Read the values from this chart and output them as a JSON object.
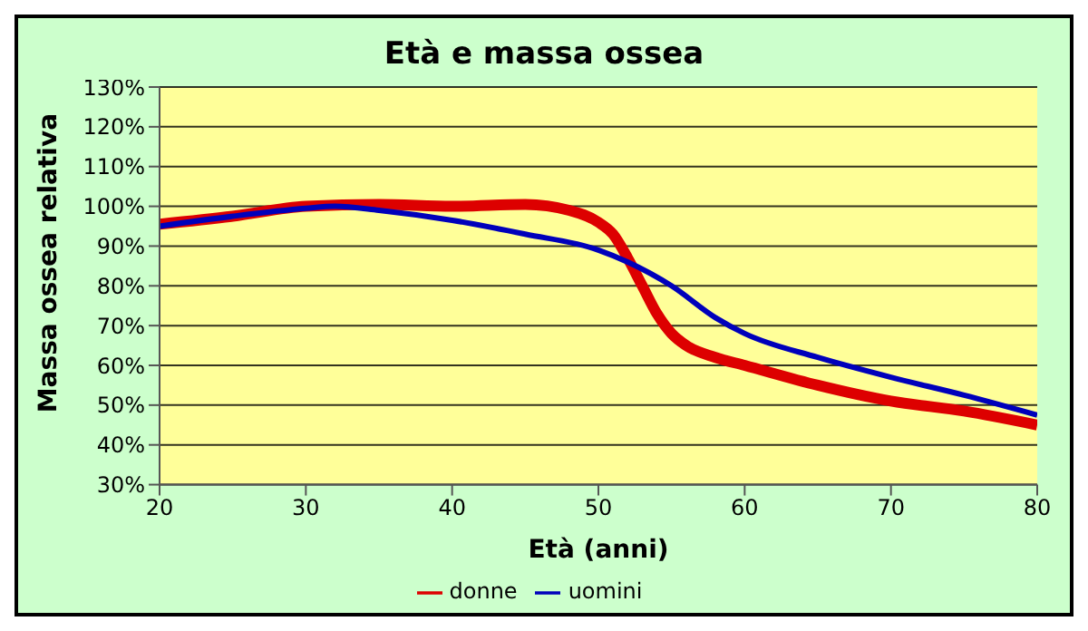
{
  "chart_data": {
    "type": "line",
    "title": "Età e massa ossea",
    "xlabel": "Età (anni)",
    "ylabel": "Massa ossea relativa",
    "xlim": [
      20,
      80
    ],
    "xticks": [
      20,
      30,
      40,
      50,
      60,
      70,
      80
    ],
    "ylim": [
      30,
      130
    ],
    "yticks": [
      {
        "value": 30,
        "label": "30%"
      },
      {
        "value": 40,
        "label": "40%"
      },
      {
        "value": 50,
        "label": "50%"
      },
      {
        "value": 60,
        "label": "60%"
      },
      {
        "value": 70,
        "label": "70%"
      },
      {
        "value": 80,
        "label": "80%"
      },
      {
        "value": 90,
        "label": "90%"
      },
      {
        "value": 100,
        "label": "100%"
      },
      {
        "value": 110,
        "label": "110%"
      },
      {
        "value": 120,
        "label": "120%"
      },
      {
        "value": 130,
        "label": "130%"
      }
    ],
    "grid": "y",
    "legend": "bottom",
    "marker": "none",
    "series": [
      {
        "name": "donne",
        "color": "#dd0000",
        "x": [
          20,
          25,
          30,
          35,
          40,
          45,
          48,
          50,
          51,
          52,
          53,
          54,
          55,
          56,
          58,
          60,
          65,
          70,
          75,
          80
        ],
        "values": [
          95.5,
          97.5,
          100,
          100.5,
          100,
          100.5,
          99,
          96,
          93,
          87,
          80,
          73,
          68,
          65,
          62,
          60,
          55,
          51,
          48.5,
          45
        ]
      },
      {
        "name": "uomini",
        "color": "#0000bb",
        "x": [
          20,
          25,
          30,
          32,
          35,
          40,
          45,
          50,
          52,
          55,
          58,
          60,
          65,
          70,
          75,
          80
        ],
        "values": [
          95,
          97.5,
          99.5,
          100,
          99,
          96.5,
          93,
          89,
          86,
          80,
          72,
          68,
          62,
          57,
          52.5,
          47.5
        ]
      }
    ]
  }
}
